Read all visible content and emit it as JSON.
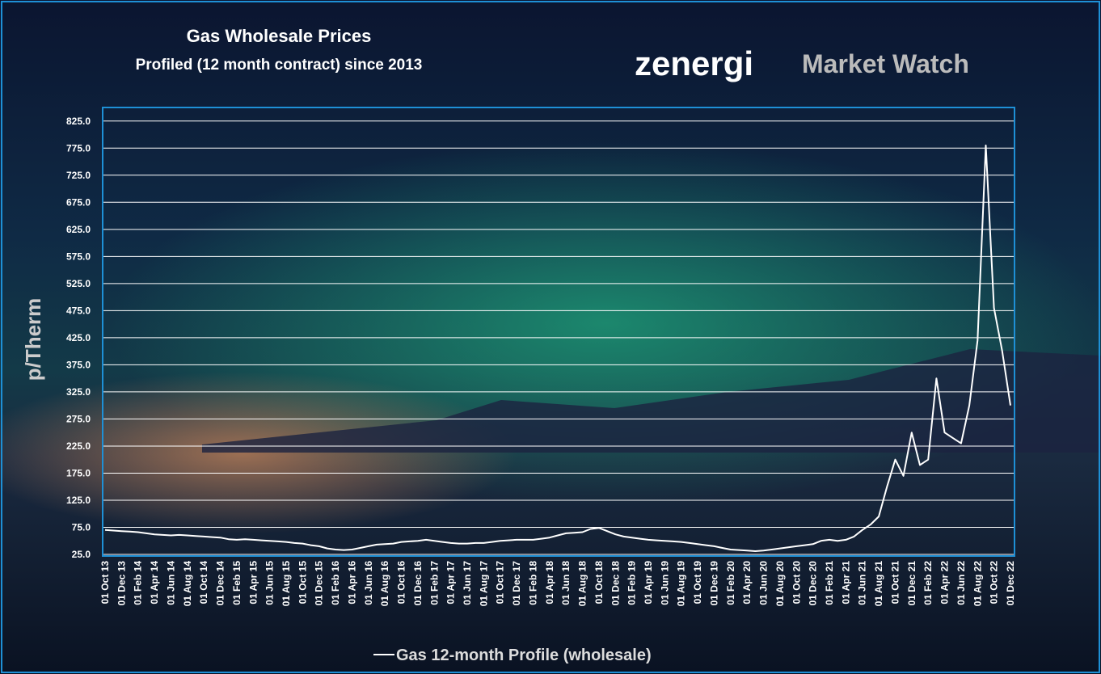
{
  "chart_data": {
    "type": "line",
    "title": "Gas Wholesale Prices",
    "subtitle": "Profiled (12 month contract) since 2013",
    "brand": "zenergi",
    "brand_tagline": "Market Watch",
    "y_label": "p/Therm",
    "categories": [
      "01 Oct 13",
      null,
      "01 Dec 13",
      null,
      "01 Feb 14",
      null,
      "01 Apr 14",
      null,
      "01 Jun 14",
      null,
      "01 Aug 14",
      null,
      "01 Oct 14",
      null,
      "01 Dec 14",
      null,
      "01 Feb 15",
      null,
      "01 Apr 15",
      null,
      "01 Jun 15",
      null,
      "01 Aug 15",
      null,
      "01 Oct 15",
      null,
      "01 Dec 15",
      null,
      "01 Feb 16",
      null,
      "01 Apr 16",
      null,
      "01 Jun 16",
      null,
      "01 Aug 16",
      null,
      "01 Oct 16",
      null,
      "01 Dec 16",
      null,
      "01 Feb 17",
      null,
      "01 Apr 17",
      null,
      "01 Jun 17",
      null,
      "01 Aug 17",
      null,
      "01 Oct 17",
      null,
      "01 Dec 17",
      null,
      "01 Feb 18",
      null,
      "01 Apr 18",
      null,
      "01 Jun 18",
      null,
      "01 Aug 18",
      null,
      "01 Oct 18",
      null,
      "01 Dec 18",
      null,
      "01 Feb 19",
      null,
      "01 Apr 19",
      null,
      "01 Jun 19",
      null,
      "01 Aug 19",
      null,
      "01 Oct 19",
      null,
      "01 Dec 19",
      null,
      "01 Feb 20",
      null,
      "01 Apr 20",
      null,
      "01 Jun 20",
      null,
      "01 Aug 20",
      null,
      "01 Oct 20",
      null,
      "01 Dec 20",
      null,
      "01 Feb 21",
      null,
      "01 Apr 21",
      null,
      "01 Jun 21",
      null,
      "01 Aug 21",
      null,
      "01 Oct 21",
      null,
      "01 Dec 21",
      null,
      "01 Feb 22",
      null,
      "01 Apr 22",
      null,
      "01 Jun 22",
      null,
      "01 Aug 22",
      null,
      "01 Oct 22",
      null,
      "01 Dec 22"
    ],
    "series": [
      {
        "name": "Gas 12-month Profile (wholesale)",
        "color": "#ffffff",
        "values": [
          70,
          69,
          68,
          67,
          66,
          64,
          62,
          61,
          60,
          61,
          60,
          59,
          58,
          57,
          56,
          53,
          52,
          53,
          52,
          51,
          50,
          49,
          48,
          46,
          45,
          42,
          40,
          36,
          34,
          33,
          34,
          37,
          40,
          43,
          44,
          45,
          48,
          49,
          50,
          52,
          50,
          48,
          46,
          45,
          45,
          46,
          46,
          48,
          50,
          51,
          52,
          52,
          52,
          54,
          56,
          60,
          64,
          65,
          66,
          72,
          74,
          68,
          62,
          58,
          56,
          54,
          52,
          51,
          50,
          49,
          48,
          46,
          44,
          42,
          40,
          37,
          34,
          33,
          32,
          31,
          32,
          34,
          36,
          38,
          40,
          42,
          44,
          50,
          52,
          50,
          52,
          58,
          70,
          80,
          95,
          150,
          200,
          170,
          250,
          190,
          200,
          350,
          250,
          240,
          230,
          300,
          420,
          780,
          480,
          400,
          300
        ]
      }
    ],
    "ylim": [
      25,
      850
    ],
    "yticks": [
      {
        "value": 25,
        "label": "25.0"
      },
      {
        "value": 75,
        "label": "75.0"
      },
      {
        "value": 125,
        "label": "125.0"
      },
      {
        "value": 175,
        "label": "175.0"
      },
      {
        "value": 225,
        "label": "225.0"
      },
      {
        "value": 275,
        "label": "275.0"
      },
      {
        "value": 325,
        "label": "325.0"
      },
      {
        "value": 375,
        "label": "375.0"
      },
      {
        "value": 425,
        "label": "425.0"
      },
      {
        "value": 475,
        "label": "475.0"
      },
      {
        "value": 525,
        "label": "525.0"
      },
      {
        "value": 575,
        "label": "575.0"
      },
      {
        "value": 625,
        "label": "625.0"
      },
      {
        "value": 675,
        "label": "675.0"
      },
      {
        "value": 725,
        "label": "725.0"
      },
      {
        "value": 775,
        "label": "775.0"
      },
      {
        "value": 825,
        "label": "825.0"
      }
    ],
    "grid": true,
    "legend": "bottom"
  }
}
